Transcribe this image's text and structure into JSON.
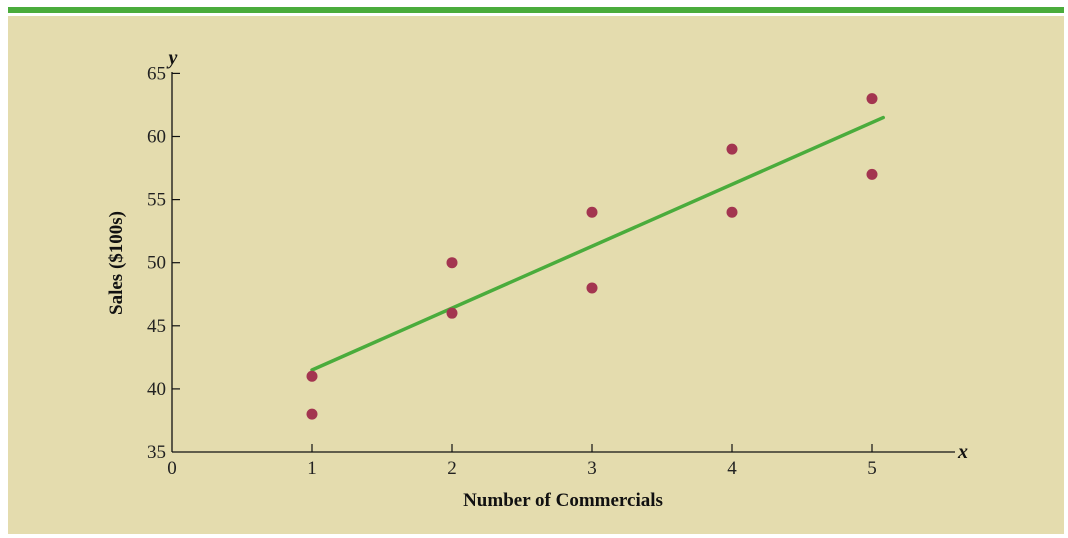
{
  "chart_data": {
    "type": "scatter",
    "xlabel": "Number of Commercials",
    "ylabel": "Sales ($100s)",
    "x_var": "x",
    "y_var": "y",
    "xlim": [
      0,
      5.6
    ],
    "ylim": [
      35,
      65
    ],
    "x_ticks": [
      0,
      1,
      2,
      3,
      4,
      5
    ],
    "y_ticks": [
      35,
      40,
      45,
      50,
      55,
      60,
      65
    ],
    "grid": false,
    "colors": {
      "points": "#a33550",
      "trend": "#4aac3c",
      "background": "#e4dcae",
      "rule": "#4aac3c"
    },
    "points": [
      {
        "x": 1,
        "y": 41
      },
      {
        "x": 1,
        "y": 38
      },
      {
        "x": 2,
        "y": 50
      },
      {
        "x": 2,
        "y": 46
      },
      {
        "x": 3,
        "y": 54
      },
      {
        "x": 3,
        "y": 48
      },
      {
        "x": 4,
        "y": 59
      },
      {
        "x": 4,
        "y": 54
      },
      {
        "x": 5,
        "y": 63
      },
      {
        "x": 5,
        "y": 57
      }
    ],
    "trend_line": {
      "x_start": 1,
      "y_start": 41.5,
      "x_end": 5.08,
      "y_end": 61.5
    }
  }
}
